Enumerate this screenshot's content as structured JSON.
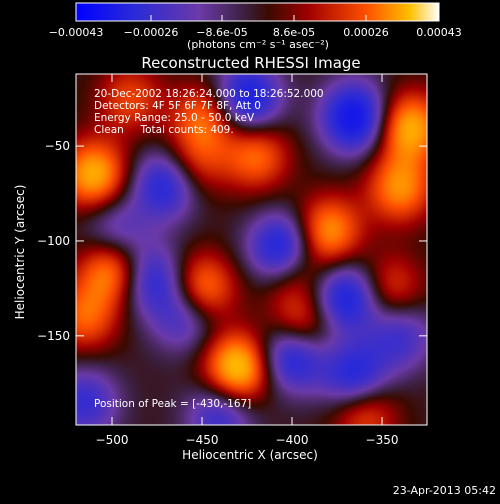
{
  "chart_data": {
    "type": "heatmap",
    "title": "Reconstructed RHESSI Image",
    "xlabel": "Heliocentric X (arcsec)",
    "ylabel": "Heliocentric Y (arcsec)",
    "xlim": [
      -520,
      -325
    ],
    "ylim": [
      -197,
      -12
    ],
    "xticks": [
      -500,
      -450,
      -400,
      -350
    ],
    "yticks": [
      -50,
      -100,
      -150
    ],
    "colorbar": {
      "ticks": [
        "-0.00043",
        "-0.00026",
        "-8.6e-05",
        "8.6e-05",
        "0.00026",
        "0.00043"
      ],
      "unit_label": "(photons cm⁻² s⁻¹ asec⁻²)",
      "range": [
        -0.00043,
        0.00043
      ]
    },
    "info_lines": [
      "20-Dec-2002 18:26:24.000 to 18:26:52.000",
      "Detectors: 4F 5F 6F 7F 8F, Att 0",
      "Energy Range: 25.0 - 50.0 keV",
      "Clean     Total counts: 409."
    ],
    "peak": {
      "label": "Position of Peak = [-430,-167]",
      "x": -430,
      "y": -167
    },
    "blobs": [
      {
        "x": -430,
        "y": -167,
        "v": 1.0
      },
      {
        "x": -510,
        "y": -65,
        "v": 0.85
      },
      {
        "x": -500,
        "y": -115,
        "v": 0.75
      },
      {
        "x": -380,
        "y": -95,
        "v": 0.75
      },
      {
        "x": -335,
        "y": -40,
        "v": 0.85
      },
      {
        "x": -340,
        "y": -72,
        "v": 0.7
      },
      {
        "x": -448,
        "y": -35,
        "v": 0.6
      },
      {
        "x": -455,
        "y": -60,
        "v": 0.45
      },
      {
        "x": -450,
        "y": -125,
        "v": 0.7
      },
      {
        "x": -420,
        "y": -55,
        "v": 0.6
      },
      {
        "x": -395,
        "y": -145,
        "v": 0.6
      },
      {
        "x": -515,
        "y": -140,
        "v": 0.55
      },
      {
        "x": -400,
        "y": -115,
        "v": 0.5
      },
      {
        "x": -360,
        "y": -190,
        "v": 0.55
      },
      {
        "x": -490,
        "y": -25,
        "v": 0.45
      },
      {
        "x": -345,
        "y": -125,
        "v": 0.45
      },
      {
        "x": -425,
        "y": -25,
        "v": -0.85
      },
      {
        "x": -470,
        "y": -70,
        "v": -0.75
      },
      {
        "x": -478,
        "y": -120,
        "v": -0.65
      },
      {
        "x": -405,
        "y": -105,
        "v": -1.0
      },
      {
        "x": -365,
        "y": -35,
        "v": -0.95
      },
      {
        "x": -400,
        "y": -160,
        "v": -0.85
      },
      {
        "x": -370,
        "y": -130,
        "v": -0.8
      },
      {
        "x": -365,
        "y": -172,
        "v": -0.75
      },
      {
        "x": -440,
        "y": -192,
        "v": -0.55
      },
      {
        "x": -515,
        "y": -185,
        "v": -0.55
      },
      {
        "x": -460,
        "y": -140,
        "v": -0.5
      },
      {
        "x": -498,
        "y": -95,
        "v": -0.45
      },
      {
        "x": -340,
        "y": -150,
        "v": -0.5
      }
    ]
  },
  "footer": {
    "timestamp": "23-Apr-2013 05:42"
  }
}
